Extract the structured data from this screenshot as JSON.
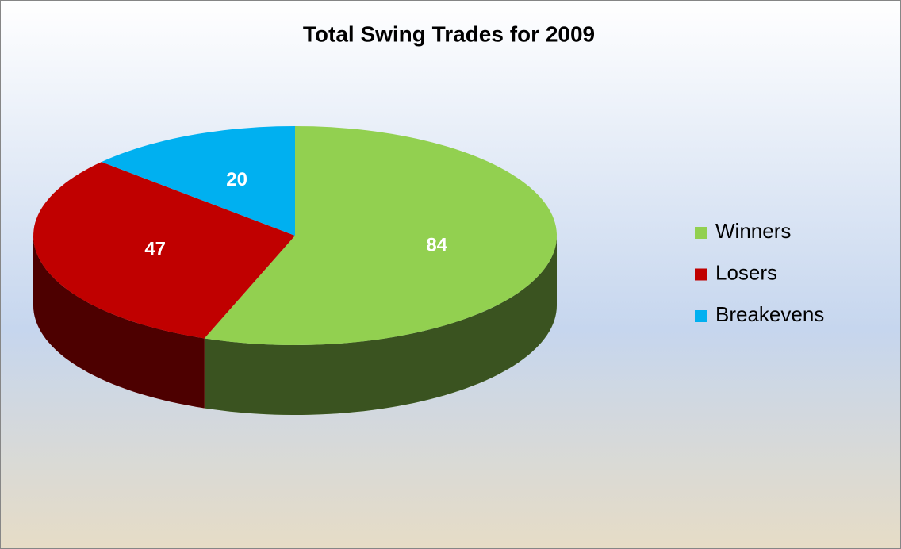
{
  "chart_data": {
    "type": "pie",
    "title": "Total Swing Trades for 2009",
    "categories": [
      "Winners",
      "Losers",
      "Breakevens"
    ],
    "values": [
      84,
      47,
      20
    ],
    "colors": [
      "#92d050",
      "#c00000",
      "#00b0f0"
    ],
    "legend": "right"
  }
}
